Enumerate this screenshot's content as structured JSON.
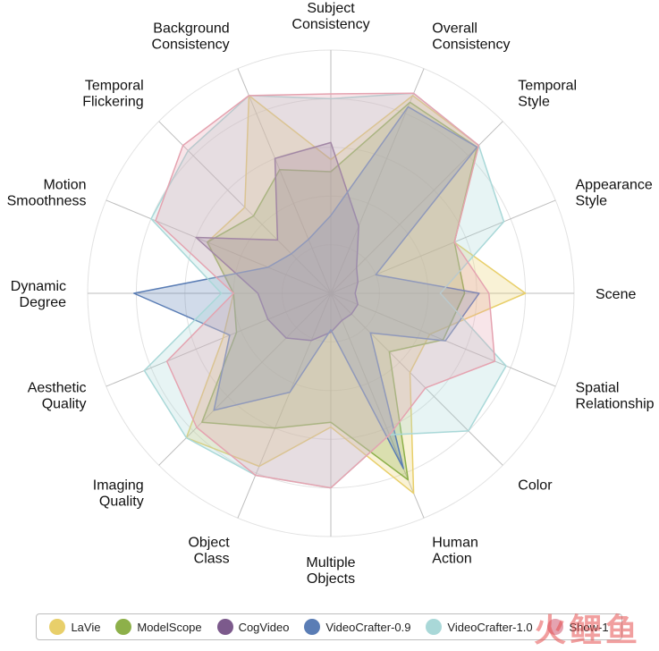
{
  "chart_data": {
    "type": "radar",
    "title": "",
    "categories": [
      [
        "Subject",
        "Consistency"
      ],
      [
        "Overall",
        "Consistency"
      ],
      [
        "Temporal",
        "Style"
      ],
      [
        "Appearance",
        "Style"
      ],
      [
        "Scene"
      ],
      [
        "Spatial",
        "Relationship"
      ],
      [
        "Color"
      ],
      [
        "Human",
        "Action"
      ],
      [
        "Multiple",
        "Objects"
      ],
      [
        "Object",
        "Class"
      ],
      [
        "Imaging",
        "Quality"
      ],
      [
        "Aesthetic",
        "Quality"
      ],
      [
        "Dynamic",
        "Degree"
      ],
      [
        "Motion",
        "Smoothness"
      ],
      [
        "Temporal",
        "Flickering"
      ],
      [
        "Background",
        "Consistency"
      ]
    ],
    "rlim": [
      0,
      1
    ],
    "grid_levels": [
      0.2,
      0.4,
      0.6,
      0.8,
      1.0
    ],
    "grid": true,
    "legend_position": "bottom",
    "series": [
      {
        "name": "LaVie",
        "color": "#e8cf6a",
        "values": [
          0.55,
          0.88,
          0.86,
          0.55,
          0.8,
          0.44,
          0.46,
          0.89,
          0.55,
          0.77,
          0.84,
          0.48,
          0.4,
          0.55,
          0.5,
          0.88
        ]
      },
      {
        "name": "ModelScope",
        "color": "#8db04a",
        "values": [
          0.5,
          0.85,
          0.85,
          0.55,
          0.55,
          0.5,
          0.34,
          0.83,
          0.53,
          0.6,
          0.75,
          0.42,
          0.4,
          0.55,
          0.45,
          0.55
        ]
      },
      {
        "name": "CogVideo",
        "color": "#7c5a8c",
        "values": [
          0.62,
          0.3,
          0.15,
          0.12,
          0.1,
          0.12,
          0.12,
          0.12,
          0.16,
          0.21,
          0.26,
          0.28,
          0.3,
          0.6,
          0.31,
          0.6
        ]
      },
      {
        "name": "VideoCrafter-0.9",
        "color": "#5a7db5",
        "values": [
          0.32,
          0.83,
          0.85,
          0.2,
          0.61,
          0.51,
          0.23,
          0.78,
          0.15,
          0.44,
          0.68,
          0.45,
          0.81,
          0.28,
          0.23,
          0.24
        ]
      },
      {
        "name": "VideoCrafter-1.0",
        "color": "#a9d8d8",
        "values": [
          0.8,
          0.89,
          0.86,
          0.77,
          0.45,
          0.78,
          0.8,
          0.63,
          0.8,
          0.81,
          0.84,
          0.83,
          0.45,
          0.8,
          0.83,
          0.88
        ]
      },
      {
        "name": "Show-1",
        "color": "#e5a3b0",
        "values": [
          0.82,
          0.89,
          0.86,
          0.55,
          0.65,
          0.73,
          0.55,
          0.63,
          0.8,
          0.81,
          0.78,
          0.73,
          0.4,
          0.78,
          0.86,
          0.88
        ]
      }
    ]
  }
}
